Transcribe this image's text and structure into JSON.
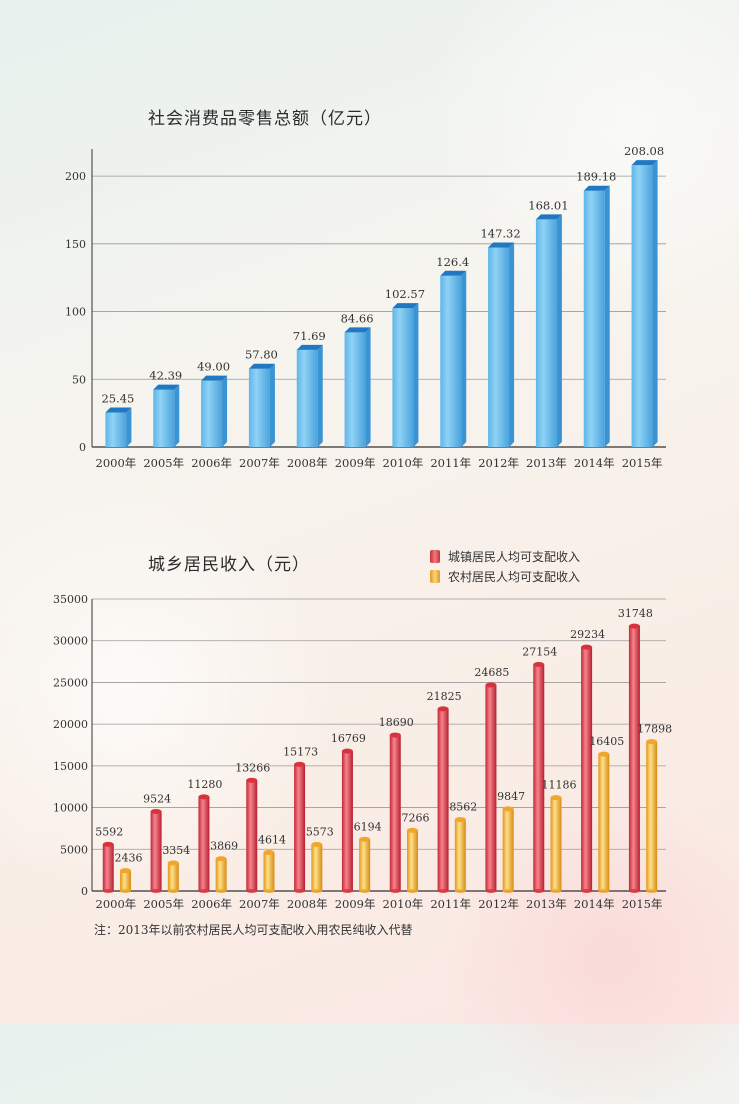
{
  "chart_data": [
    {
      "type": "bar",
      "title": "社会消费品零售总额（亿元）",
      "categories": [
        "2000年",
        "2005年",
        "2006年",
        "2007年",
        "2008年",
        "2009年",
        "2010年",
        "2011年",
        "2012年",
        "2013年",
        "2014年",
        "2015年"
      ],
      "values": [
        25.45,
        42.39,
        49.0,
        57.8,
        71.69,
        84.66,
        102.57,
        126.4,
        147.32,
        168.01,
        189.18,
        208.08
      ],
      "value_labels": [
        "25.45",
        "42.39",
        "49.00",
        "57.80",
        "71.69",
        "84.66",
        "102.57",
        "126.4",
        "147.32",
        "168.01",
        "189.18",
        "208.08"
      ],
      "yticks": [
        0,
        50,
        100,
        150,
        200
      ],
      "ylim": [
        0,
        220
      ],
      "grid": true,
      "color": "#6ec3ee"
    },
    {
      "type": "bar",
      "title": "城乡居民收入（元）",
      "categories": [
        "2000年",
        "2005年",
        "2006年",
        "2007年",
        "2008年",
        "2009年",
        "2010年",
        "2011年",
        "2012年",
        "2013年",
        "2014年",
        "2015年"
      ],
      "series": [
        {
          "name": "城镇居民人均可支配收入",
          "color": "#e0414b",
          "values": [
            5592,
            9524,
            11280,
            13266,
            15173,
            16769,
            18690,
            21825,
            24685,
            27154,
            29234,
            31748
          ]
        },
        {
          "name": "农村居民人均可支配收入",
          "color": "#f2b740",
          "values": [
            2436,
            3354,
            3869,
            4614,
            5573,
            6194,
            7266,
            8562,
            9847,
            11186,
            16405,
            17898
          ]
        }
      ],
      "yticks": [
        0,
        5000,
        10000,
        15000,
        20000,
        25000,
        30000,
        35000
      ],
      "ylim": [
        0,
        35000
      ],
      "grid": true,
      "legend": "top-right",
      "note": "注：2013年以前农村居民人均可支配收入用农民纯收入代替"
    }
  ]
}
